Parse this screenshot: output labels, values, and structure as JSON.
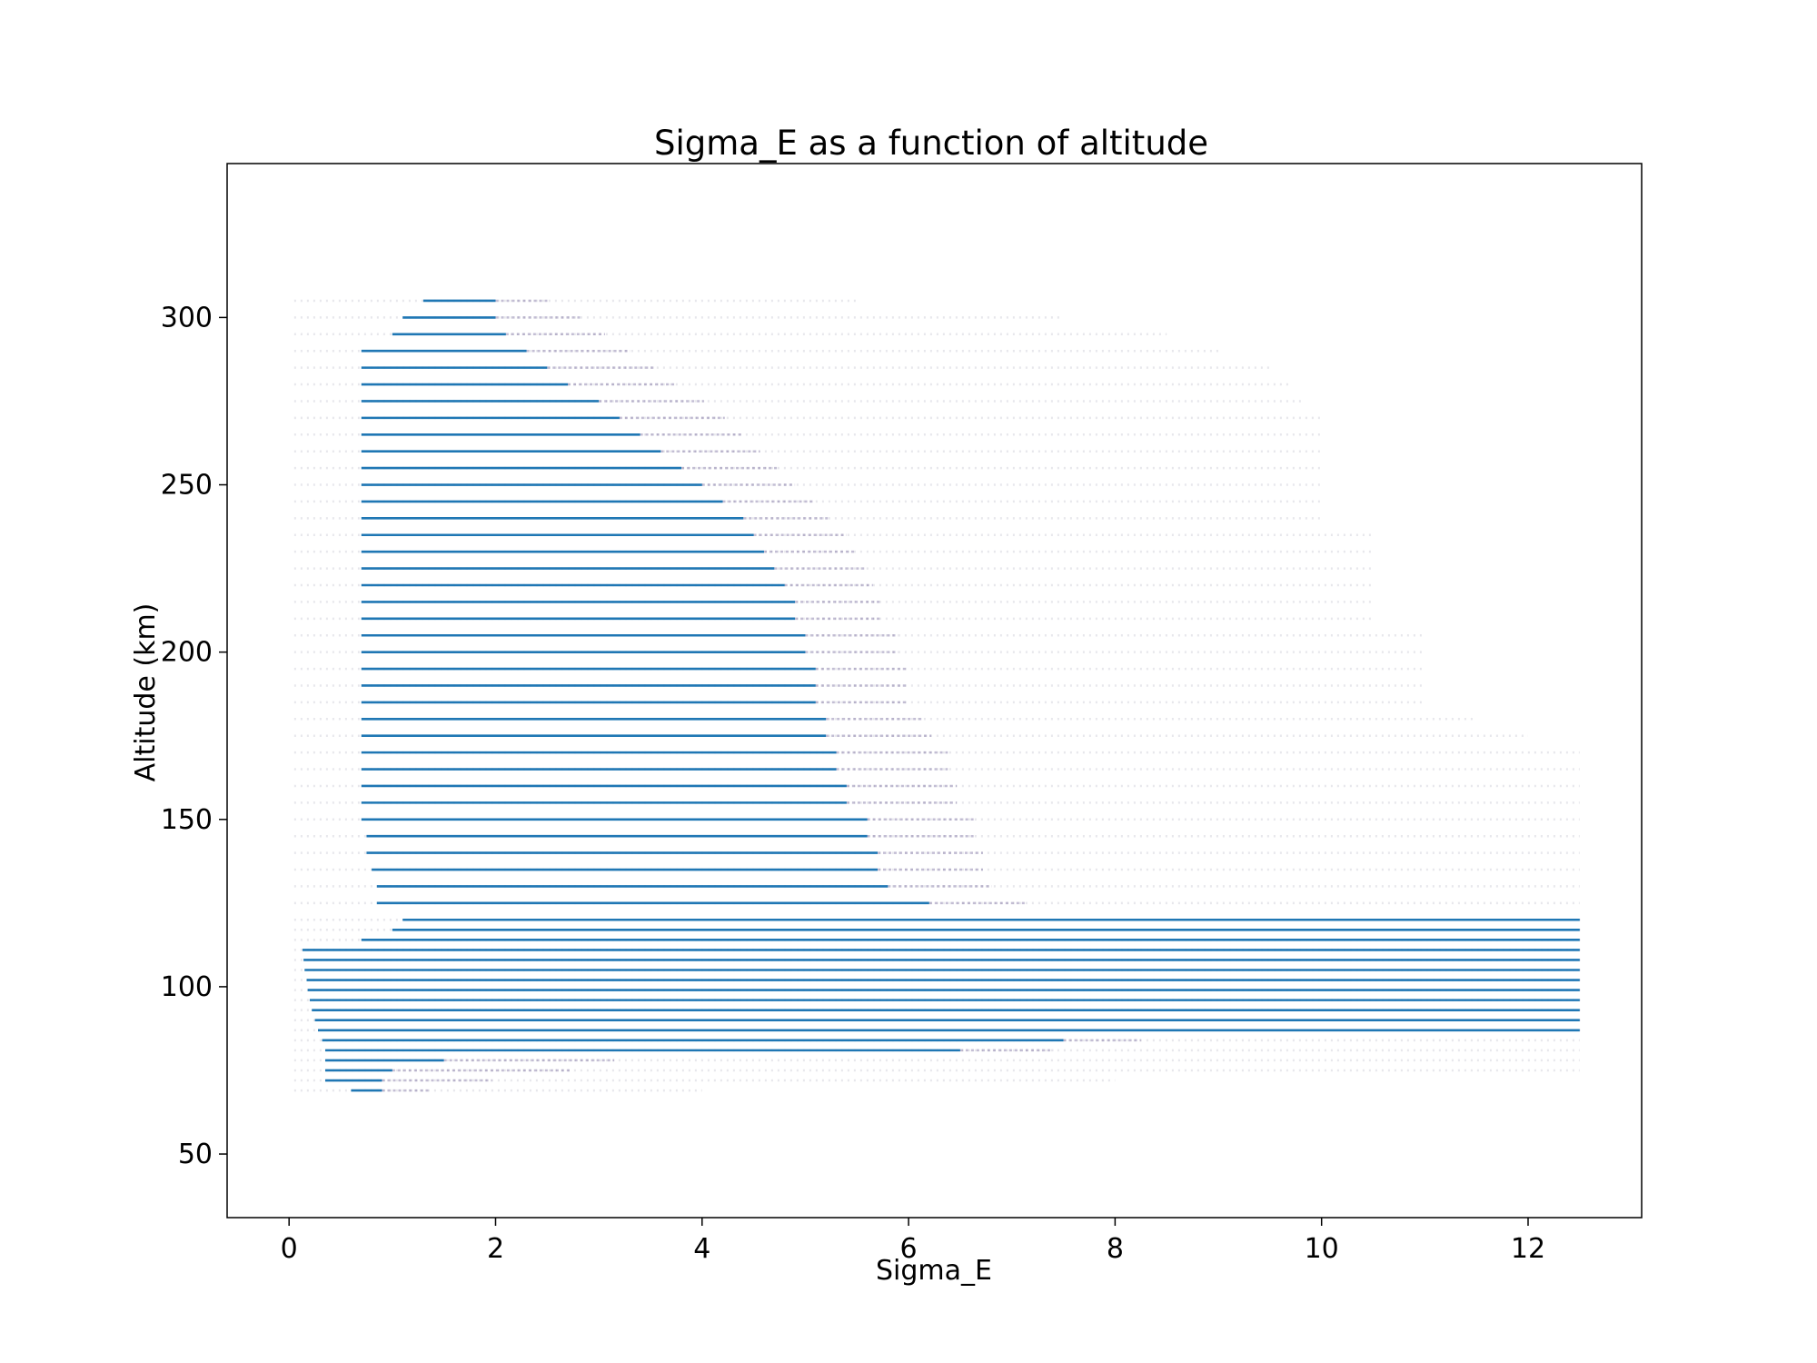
{
  "chart_data": {
    "type": "scatter",
    "title": "Sigma_E as a function of altitude",
    "xlabel": "Sigma_E",
    "ylabel": "Altitude (km)",
    "xlim": [
      -0.6,
      13.1
    ],
    "ylim": [
      31,
      346
    ],
    "x_ticks": [
      0,
      2,
      4,
      6,
      8,
      10,
      12
    ],
    "y_ticks": [
      50,
      100,
      150,
      200,
      250,
      300
    ],
    "grid": false,
    "legend": "none",
    "colors": {
      "points": "#1f77b4",
      "scatter_shadow": "#7b6fa0",
      "axes": "#000000"
    },
    "series": [
      {
        "altitude_rows_km": [
          69,
          72,
          75,
          78,
          81,
          84,
          87,
          90,
          93,
          96,
          99,
          102,
          105,
          108,
          111,
          114,
          117,
          120,
          125,
          130,
          135,
          140,
          145,
          150,
          155,
          160,
          165,
          170,
          175,
          180,
          185,
          190,
          195,
          200,
          205,
          210,
          215,
          220,
          225,
          230,
          235,
          240,
          245,
          250,
          255,
          260,
          265,
          270,
          275,
          280,
          285,
          290,
          295,
          300,
          305
        ],
        "dense_start": [
          0.6,
          0.35,
          0.35,
          0.35,
          0.35,
          0.32,
          0.28,
          0.25,
          0.22,
          0.2,
          0.18,
          0.17,
          0.15,
          0.14,
          0.13,
          0.7,
          1.0,
          1.1,
          0.85,
          0.85,
          0.8,
          0.75,
          0.75,
          0.7,
          0.7,
          0.7,
          0.7,
          0.7,
          0.7,
          0.7,
          0.7,
          0.7,
          0.7,
          0.7,
          0.7,
          0.7,
          0.7,
          0.7,
          0.7,
          0.7,
          0.7,
          0.7,
          0.7,
          0.7,
          0.7,
          0.7,
          0.7,
          0.7,
          0.7,
          0.7,
          0.7,
          0.7,
          1.0,
          1.1,
          1.3
        ],
        "dense_end": [
          0.9,
          0.9,
          1.0,
          1.5,
          6.5,
          7.5,
          12.5,
          12.5,
          12.5,
          12.5,
          12.5,
          12.5,
          12.5,
          12.5,
          12.5,
          12.5,
          12.5,
          12.5,
          6.2,
          5.8,
          5.7,
          5.7,
          5.6,
          5.6,
          5.4,
          5.4,
          5.3,
          5.3,
          5.2,
          5.2,
          5.1,
          5.1,
          5.1,
          5.0,
          5.0,
          4.9,
          4.9,
          4.8,
          4.7,
          4.6,
          4.5,
          4.4,
          4.2,
          4.0,
          3.8,
          3.6,
          3.4,
          3.2,
          3.0,
          2.7,
          2.5,
          2.3,
          2.1,
          2.0,
          2.0
        ],
        "sparse_end": [
          4.0,
          8.0,
          12.5,
          12.5,
          12.5,
          12.5,
          12.5,
          12.5,
          12.5,
          12.5,
          12.5,
          12.5,
          12.5,
          12.5,
          12.5,
          12.5,
          12.5,
          12.5,
          12.5,
          12.5,
          12.5,
          12.5,
          12.5,
          12.5,
          12.5,
          12.5,
          12.5,
          12.5,
          12.0,
          11.5,
          11.0,
          11.0,
          11.0,
          11.0,
          11.0,
          10.5,
          10.5,
          10.5,
          10.5,
          10.5,
          10.5,
          10.0,
          10.0,
          10.0,
          10.0,
          10.0,
          10.0,
          10.0,
          9.8,
          9.7,
          9.5,
          9.0,
          8.5,
          7.5,
          5.5
        ]
      }
    ]
  }
}
